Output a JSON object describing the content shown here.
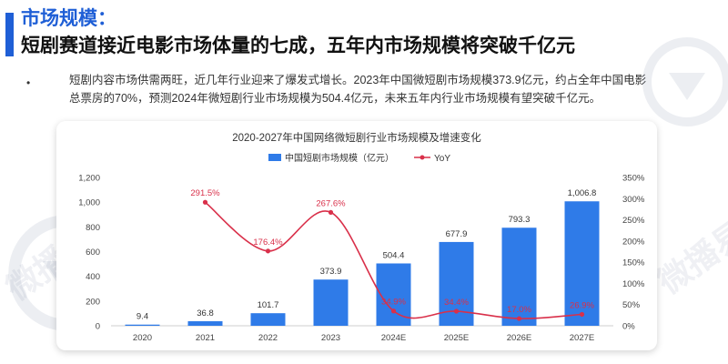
{
  "header": {
    "title": "市场规模：",
    "subtitle": "短剧赛道接近电影市场体量的七成，五年内市场规模将突破千亿元"
  },
  "body": {
    "bullet": "•",
    "paragraph": "短剧内容市场供需两旺，近几年行业迎来了爆发式增长。2023年中国微短剧市场规模373.9亿元，约占全年中国电影总票房的70%，预测2024年微短剧行业市场规模为504.4亿元，未来五年内行业市场规模有望突破千亿元。"
  },
  "watermark": {
    "text": "微播易"
  },
  "colors": {
    "accent": "#1f5fd6",
    "bar": "#2f7be8",
    "line": "#d9304a"
  },
  "chart_data": {
    "type": "bar",
    "title": "2020-2027年中国网络微短剧行业市场规模及增速变化",
    "categories": [
      "2020",
      "2021",
      "2022",
      "2023",
      "2024E",
      "2025E",
      "2026E",
      "2027E"
    ],
    "series": [
      {
        "name": "中国短剧市场规模（亿元）",
        "type": "bar",
        "axis": "left",
        "values": [
          9.4,
          36.8,
          101.7,
          373.9,
          504.4,
          677.9,
          793.3,
          1006.8
        ],
        "labels": [
          "9.4",
          "36.8",
          "101.7",
          "373.9",
          "504.4",
          "677.9",
          "793.3",
          "1,006.8"
        ]
      },
      {
        "name": "YoY",
        "type": "line",
        "axis": "right",
        "values": [
          null,
          291.5,
          176.4,
          267.6,
          34.9,
          34.4,
          17.0,
          26.9
        ],
        "labels": [
          "",
          "291.5%",
          "176.4%",
          "267.6%",
          "34.9%",
          "34.4%",
          "17.0%",
          "26.9%"
        ]
      }
    ],
    "y_left": {
      "range": [
        0,
        1200
      ],
      "ticks": [
        "0",
        "200",
        "400",
        "600",
        "800",
        "1,000",
        "1,200"
      ]
    },
    "y_right": {
      "range": [
        0,
        350
      ],
      "ticks": [
        "0%",
        "50%",
        "100%",
        "150%",
        "200%",
        "250%",
        "300%",
        "350%"
      ]
    },
    "legend": "top",
    "grid": false
  }
}
